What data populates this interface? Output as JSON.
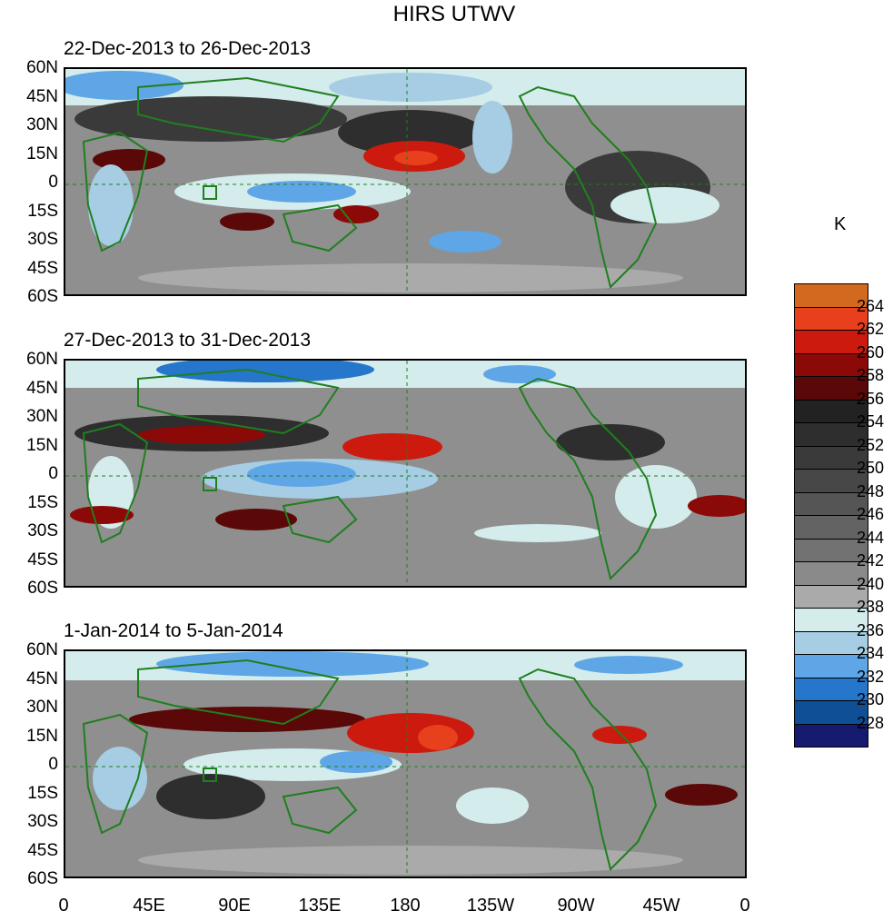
{
  "title": "HIRS UTWV",
  "panels": [
    {
      "title": "22-Dec-2013 to 26-Dec-2013"
    },
    {
      "title": "27-Dec-2013 to 31-Dec-2013"
    },
    {
      "title": "1-Jan-2014 to 5-Jan-2014"
    }
  ],
  "lat_labels": [
    "60N",
    "45N",
    "30N",
    "15N",
    "0",
    "15S",
    "30S",
    "45S",
    "60S"
  ],
  "lon_labels": [
    "0",
    "45E",
    "90E",
    "135E",
    "180",
    "135W",
    "90W",
    "45W",
    "0"
  ],
  "colorbar": {
    "units": "K",
    "labels": [
      "264",
      "262",
      "260",
      "258",
      "256",
      "254",
      "252",
      "250",
      "248",
      "246",
      "244",
      "242",
      "240",
      "238",
      "236",
      "234",
      "232",
      "230",
      "228"
    ],
    "colors": [
      "#d2691e",
      "#e8401c",
      "#cc1a0e",
      "#8b0a08",
      "#5a0808",
      "#222222",
      "#2e2e2e",
      "#3a3a3a",
      "#474747",
      "#555555",
      "#636363",
      "#727272",
      "#8a8a8a",
      "#aaaaaa",
      "#d4ecec",
      "#a6cde3",
      "#5fa6e6",
      "#2676cc",
      "#0f4f96",
      "#161b70"
    ]
  },
  "map_colors": {
    "coast": "#1f7f1f",
    "background": "#8f8f8f"
  }
}
